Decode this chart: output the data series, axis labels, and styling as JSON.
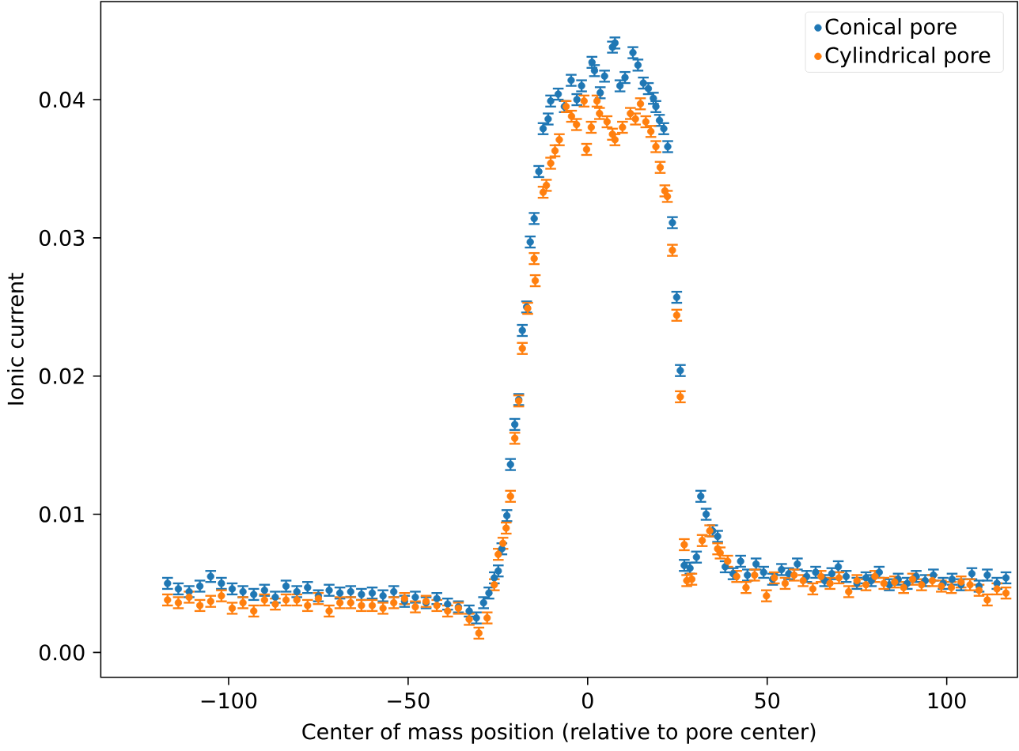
{
  "chart_data": {
    "type": "scatter",
    "xlabel": "Center of mass position (relative to pore center)",
    "ylabel": "Ionic current",
    "xlim": [
      -135.6,
      119.7
    ],
    "ylim": [
      -0.0018,
      0.0471
    ],
    "xticks": [
      {
        "value": -100,
        "label": "−100"
      },
      {
        "value": -50,
        "label": "−50"
      },
      0,
      50,
      100
    ],
    "yticks": [
      {
        "value": 0,
        "label": "0.00"
      },
      {
        "value": 0.01,
        "label": "0.01"
      },
      {
        "value": 0.02,
        "label": "0.02"
      },
      {
        "value": 0.03,
        "label": "0.03"
      },
      {
        "value": 0.04,
        "label": "0.04"
      }
    ],
    "legend": "top right",
    "marker": "circle",
    "grid": false,
    "series": [
      {
        "name": "Conical pore",
        "color": "#1f77b4",
        "x": [
          -117,
          -114,
          -111,
          -108,
          -105,
          -102,
          -99,
          -96,
          -93,
          -90,
          -87,
          -84,
          -81,
          -78,
          -75,
          -72,
          -69,
          -66,
          -63,
          -60,
          -57,
          -54,
          -51,
          -48,
          -45,
          -42,
          -39,
          -36,
          -33,
          -31,
          -29,
          -27.5,
          -26,
          -24.9,
          -23.9,
          -22.5,
          -21.5,
          -20.3,
          -19.2,
          -18.2,
          -17,
          -16,
          -14.9,
          -13.6,
          -12.4,
          -11,
          -10.3,
          -8.2,
          -6.5,
          -4.6,
          -3,
          -1.7,
          1.2,
          1.9,
          3.5,
          4.7,
          6.9,
          7.6,
          9,
          10.4,
          12.6,
          14,
          15.5,
          16.9,
          18.3,
          19,
          20,
          21.2,
          22.3,
          23.6,
          24.8,
          25.8,
          26.9,
          28.5,
          30.3,
          31.5,
          33,
          34.8,
          36.2,
          38.3,
          40.5,
          42.6,
          44.5,
          46.9,
          49,
          51.5,
          54,
          56,
          58.4,
          61,
          63.5,
          66,
          68,
          69.8,
          72,
          75,
          77.5,
          79,
          81.2,
          84,
          86.5,
          89,
          91.5,
          94,
          96.3,
          99,
          101.5,
          104,
          107,
          109,
          111.3,
          114,
          116.5
        ],
        "values": [
          0.005,
          0.0046,
          0.0044,
          0.0048,
          0.0055,
          0.005,
          0.0046,
          0.0044,
          0.0042,
          0.0045,
          0.004,
          0.0048,
          0.0044,
          0.0047,
          0.0041,
          0.0045,
          0.0043,
          0.0044,
          0.0042,
          0.0043,
          0.0041,
          0.0044,
          0.0037,
          0.004,
          0.0036,
          0.0039,
          0.0035,
          0.0033,
          0.003,
          0.0025,
          0.0036,
          0.0043,
          0.0054,
          0.0059,
          0.0075,
          0.0099,
          0.0136,
          0.0165,
          0.0183,
          0.0233,
          0.025,
          0.0297,
          0.0314,
          0.0348,
          0.0379,
          0.0386,
          0.0399,
          0.0404,
          0.0395,
          0.0414,
          0.04,
          0.041,
          0.0427,
          0.0421,
          0.0405,
          0.0417,
          0.0438,
          0.0441,
          0.041,
          0.0416,
          0.0434,
          0.0425,
          0.0412,
          0.0408,
          0.0401,
          0.0395,
          0.0385,
          0.0379,
          0.0366,
          0.0311,
          0.0257,
          0.0204,
          0.0063,
          0.0061,
          0.0069,
          0.0113,
          0.01,
          0.0088,
          0.0084,
          0.0062,
          0.0057,
          0.0066,
          0.0056,
          0.0064,
          0.0058,
          0.0053,
          0.006,
          0.0057,
          0.0064,
          0.0055,
          0.0058,
          0.0052,
          0.0057,
          0.0062,
          0.0055,
          0.005,
          0.0054,
          0.0052,
          0.0058,
          0.0049,
          0.0053,
          0.005,
          0.0055,
          0.0052,
          0.0056,
          0.005,
          0.0053,
          0.0049,
          0.0057,
          0.0048,
          0.0056,
          0.005,
          0.0054
        ],
        "errors": [
          0.0004,
          0.0004,
          0.0004,
          0.0004,
          0.0004,
          0.0004,
          0.0004,
          0.0004,
          0.0004,
          0.0004,
          0.0004,
          0.0004,
          0.0004,
          0.0004,
          0.0004,
          0.0004,
          0.0004,
          0.0004,
          0.0004,
          0.0004,
          0.0004,
          0.0004,
          0.0004,
          0.0004,
          0.0004,
          0.0004,
          0.0004,
          0.0004,
          0.0004,
          0.0004,
          0.0004,
          0.0004,
          0.0004,
          0.0004,
          0.0004,
          0.0004,
          0.0004,
          0.0004,
          0.0004,
          0.0004,
          0.0004,
          0.0004,
          0.0004,
          0.0004,
          0.0004,
          0.0004,
          0.0004,
          0.0004,
          0.0004,
          0.0004,
          0.0004,
          0.0004,
          0.0004,
          0.0004,
          0.0004,
          0.0004,
          0.0004,
          0.0004,
          0.0004,
          0.0004,
          0.0004,
          0.0004,
          0.0004,
          0.0004,
          0.0004,
          0.0004,
          0.0004,
          0.0004,
          0.0004,
          0.0004,
          0.0004,
          0.0004,
          0.0004,
          0.0004,
          0.0004,
          0.0004,
          0.0004,
          0.0004,
          0.0004,
          0.0004,
          0.0004,
          0.0004,
          0.0004,
          0.0004,
          0.0004,
          0.0004,
          0.0004,
          0.0004,
          0.0004,
          0.0004,
          0.0004,
          0.0004,
          0.0004,
          0.0004,
          0.0004,
          0.0004,
          0.0004,
          0.0004,
          0.0004,
          0.0004,
          0.0004,
          0.0004,
          0.0004,
          0.0004,
          0.0004,
          0.0004,
          0.0004,
          0.0004,
          0.0004,
          0.0004,
          0.0004,
          0.0004,
          0.0004
        ]
      },
      {
        "name": "Cylindrical pore",
        "color": "#ff7f0e",
        "x": [
          -117,
          -114,
          -111,
          -108,
          -105,
          -102,
          -99,
          -96,
          -93,
          -90,
          -87,
          -84,
          -81,
          -78,
          -75,
          -72,
          -69,
          -66,
          -63,
          -60,
          -57,
          -54,
          -51,
          -48,
          -45,
          -42,
          -39,
          -36,
          -33,
          -30.3,
          -28,
          -26,
          -24.9,
          -23.6,
          -22.7,
          -21.5,
          -20.3,
          -19.2,
          -18.2,
          -16.7,
          -14.9,
          -14.6,
          -12.4,
          -11.5,
          -10.3,
          -9.1,
          -7.9,
          -6,
          -4.5,
          -3.1,
          -1,
          -0.3,
          1,
          2.6,
          3.3,
          5.4,
          6.9,
          7.6,
          9.7,
          11.9,
          13.3,
          14.7,
          16.2,
          17.6,
          19,
          20.2,
          21.5,
          22.2,
          23.6,
          24.8,
          25.8,
          26.9,
          27.6,
          29,
          31.9,
          34,
          36.2,
          36.9,
          39,
          41.5,
          44.1,
          46.5,
          49.8,
          52,
          55,
          57.5,
          60,
          62.7,
          65,
          67.5,
          70,
          72.7,
          75,
          77.5,
          80,
          82.5,
          85.5,
          88,
          90.5,
          93,
          96,
          98.5,
          101.3,
          104,
          106.5,
          109,
          111.3,
          114,
          116.5
        ],
        "values": [
          0.0038,
          0.0036,
          0.004,
          0.0034,
          0.0037,
          0.0041,
          0.0032,
          0.0036,
          0.003,
          0.0038,
          0.0035,
          0.0038,
          0.0038,
          0.0034,
          0.0039,
          0.003,
          0.0036,
          0.0036,
          0.0034,
          0.0034,
          0.0032,
          0.0036,
          0.0039,
          0.0033,
          0.0037,
          0.0034,
          0.003,
          0.0032,
          0.0024,
          0.0014,
          0.0025,
          0.0049,
          0.0071,
          0.0079,
          0.009,
          0.0113,
          0.0155,
          0.0182,
          0.022,
          0.0249,
          0.0285,
          0.0269,
          0.0333,
          0.0338,
          0.0354,
          0.0363,
          0.0371,
          0.0395,
          0.0388,
          0.0382,
          0.0399,
          0.0364,
          0.038,
          0.0399,
          0.039,
          0.0384,
          0.0375,
          0.0371,
          0.038,
          0.039,
          0.0386,
          0.0397,
          0.0384,
          0.0377,
          0.0366,
          0.0351,
          0.0334,
          0.033,
          0.0291,
          0.0244,
          0.0185,
          0.0078,
          0.0052,
          0.0053,
          0.0081,
          0.0088,
          0.0075,
          0.0072,
          0.0066,
          0.0055,
          0.0047,
          0.0056,
          0.0041,
          0.0054,
          0.005,
          0.0056,
          0.0052,
          0.0046,
          0.0055,
          0.005,
          0.0054,
          0.0044,
          0.0052,
          0.0049,
          0.0055,
          0.005,
          0.0051,
          0.0047,
          0.0053,
          0.0049,
          0.0052,
          0.0048,
          0.0047,
          0.0051,
          0.0049,
          0.0045,
          0.0038,
          0.0046,
          0.0043
        ],
        "errors": [
          0.0004,
          0.0004,
          0.0004,
          0.0004,
          0.0004,
          0.0004,
          0.0004,
          0.0004,
          0.0004,
          0.0004,
          0.0004,
          0.0004,
          0.0004,
          0.0004,
          0.0004,
          0.0004,
          0.0004,
          0.0004,
          0.0004,
          0.0004,
          0.0004,
          0.0004,
          0.0004,
          0.0004,
          0.0004,
          0.0004,
          0.0004,
          0.0004,
          0.0004,
          0.0004,
          0.0004,
          0.0004,
          0.0004,
          0.0004,
          0.0004,
          0.0004,
          0.0004,
          0.0004,
          0.0004,
          0.0004,
          0.0004,
          0.0004,
          0.0004,
          0.0004,
          0.0004,
          0.0004,
          0.0004,
          0.0004,
          0.0004,
          0.0004,
          0.0004,
          0.0004,
          0.0004,
          0.0004,
          0.0004,
          0.0004,
          0.0004,
          0.0004,
          0.0004,
          0.0004,
          0.0004,
          0.0004,
          0.0004,
          0.0004,
          0.0004,
          0.0004,
          0.0004,
          0.0004,
          0.0004,
          0.0004,
          0.0004,
          0.0004,
          0.0004,
          0.0004,
          0.0004,
          0.0004,
          0.0004,
          0.0004,
          0.0004,
          0.0004,
          0.0004,
          0.0004,
          0.0004,
          0.0004,
          0.0004,
          0.0004,
          0.0004,
          0.0004,
          0.0004,
          0.0004,
          0.0004,
          0.0004,
          0.0004,
          0.0004,
          0.0004,
          0.0004,
          0.0004,
          0.0004,
          0.0004,
          0.0004,
          0.0004,
          0.0004,
          0.0004,
          0.0004,
          0.0004,
          0.0004,
          0.0004,
          0.0004,
          0.0004
        ]
      }
    ]
  }
}
